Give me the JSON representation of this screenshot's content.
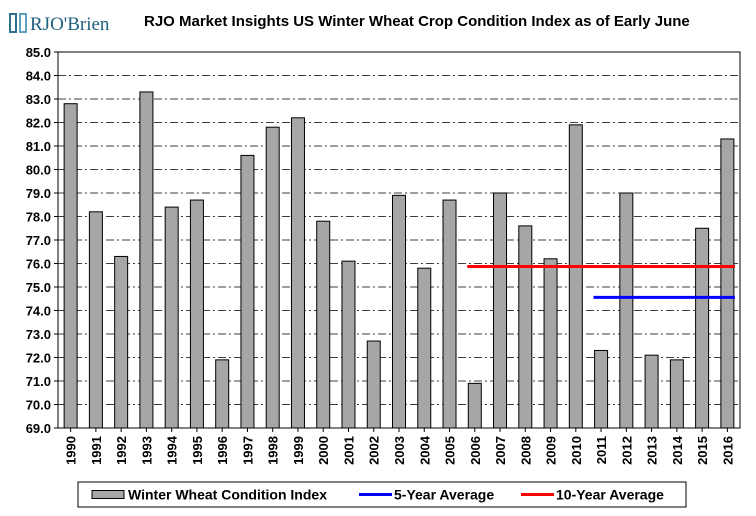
{
  "logo": {
    "brand": "RJO'Brien",
    "mark_color": "#2f6e8c",
    "text_color": "#1f5f7f"
  },
  "chart_data": {
    "type": "bar",
    "title": "RJO Market Insights US Winter Wheat Crop Condition Index as of Early June",
    "xlabel": "",
    "ylabel": "",
    "ylim": [
      69.0,
      85.0
    ],
    "ytick_step": 1.0,
    "yticks": [
      "69.0",
      "70.0",
      "71.0",
      "72.0",
      "73.0",
      "74.0",
      "75.0",
      "76.0",
      "77.0",
      "78.0",
      "79.0",
      "80.0",
      "81.0",
      "82.0",
      "83.0",
      "84.0",
      "85.0"
    ],
    "grid": "horizontal dash-dot",
    "categories": [
      "1990",
      "1991",
      "1992",
      "1993",
      "1994",
      "1995",
      "1996",
      "1997",
      "1998",
      "1999",
      "2000",
      "2001",
      "2002",
      "2003",
      "2004",
      "2005",
      "2006",
      "2007",
      "2008",
      "2009",
      "2010",
      "2011",
      "2012",
      "2013",
      "2014",
      "2015",
      "2016"
    ],
    "series": [
      {
        "name": "Winter Wheat Condition Index",
        "type": "bar",
        "color": "#a6a6a6",
        "values": [
          82.8,
          78.2,
          76.3,
          83.3,
          78.4,
          78.7,
          71.9,
          80.6,
          81.8,
          82.2,
          77.8,
          76.1,
          72.7,
          78.9,
          75.8,
          78.7,
          70.9,
          79.0,
          77.6,
          76.2,
          81.9,
          72.3,
          79.0,
          72.1,
          71.9,
          77.5,
          81.3
        ]
      },
      {
        "name": "5-Year Average",
        "type": "line",
        "color": "#0000ff",
        "from": "2011",
        "to": "2016",
        "value": 74.56
      },
      {
        "name": "10-Year Average",
        "type": "line",
        "color": "#ff0000",
        "from": "2006",
        "to": "2016",
        "value": 75.87
      }
    ],
    "legend": {
      "position": "bottom",
      "entries": [
        "Winter Wheat Condition Index",
        "5-Year Average",
        "10-Year Average"
      ]
    }
  }
}
